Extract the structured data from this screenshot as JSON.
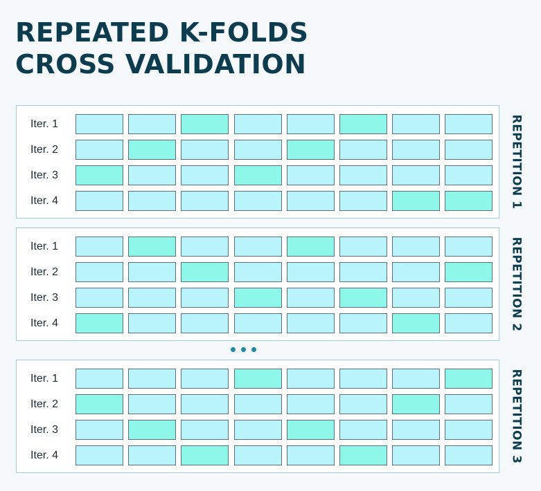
{
  "title_lines": [
    "REPEATED K-FOLDS",
    "CROSS VALIDATION"
  ],
  "repetitions": [
    {
      "label": "REPETITION 1",
      "iterations": [
        {
          "label": "Iter. 1",
          "test_folds": [
            3,
            6
          ]
        },
        {
          "label": "Iter. 2",
          "test_folds": [
            2,
            5
          ]
        },
        {
          "label": "Iter. 3",
          "test_folds": [
            1,
            4
          ]
        },
        {
          "label": "Iter. 4",
          "test_folds": [
            7,
            8
          ]
        }
      ]
    },
    {
      "label": "REPETITION 2",
      "iterations": [
        {
          "label": "Iter. 1",
          "test_folds": [
            2,
            5
          ]
        },
        {
          "label": "Iter. 2",
          "test_folds": [
            3,
            8
          ]
        },
        {
          "label": "Iter. 3",
          "test_folds": [
            4,
            6
          ]
        },
        {
          "label": "Iter. 4",
          "test_folds": [
            1,
            7
          ]
        }
      ]
    },
    {
      "label": "REPETITION 3",
      "iterations": [
        {
          "label": "Iter. 1",
          "test_folds": [
            4,
            8
          ]
        },
        {
          "label": "Iter. 2",
          "test_folds": [
            1,
            7
          ]
        },
        {
          "label": "Iter. 3",
          "test_folds": [
            2,
            5
          ]
        },
        {
          "label": "Iter. 4",
          "test_folds": [
            3,
            6
          ]
        }
      ]
    }
  ],
  "folds_per_iteration": 8,
  "colors": {
    "title": "#0e3c4f",
    "train_fold": "#baf4fb",
    "test_fold": "#8ff7ea",
    "fold_border": "#5a6f7a",
    "panel_border": "#9fc9d6",
    "ellipsis_dots": "#1f8ba3",
    "background": "#f5f9fc"
  },
  "ellipsis_icon": "three-dots-icon"
}
